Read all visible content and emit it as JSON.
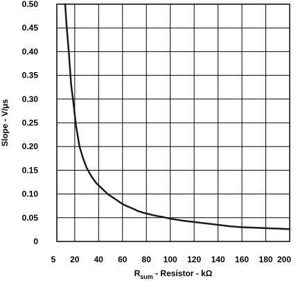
{
  "chart_data": {
    "type": "line",
    "xlabel": {
      "main": "R",
      "subscript": "sum",
      "rest": " - Resistor - kΩ"
    },
    "ylabel": "Slope - V/µs",
    "xlim": [
      5,
      200
    ],
    "ylim": [
      0,
      0.5
    ],
    "x_ticks": [
      5,
      20,
      40,
      60,
      80,
      100,
      120,
      140,
      160,
      180,
      200
    ],
    "x_tick_labels": [
      "5",
      "20",
      "40",
      "60",
      "80",
      "100",
      "120",
      "140",
      "160",
      "180",
      "200"
    ],
    "y_ticks": [
      0,
      0.05,
      0.1,
      0.15,
      0.2,
      0.25,
      0.3,
      0.35,
      0.4,
      0.45,
      0.5
    ],
    "y_tick_labels": [
      "0",
      "0.05",
      "0.10",
      "0.15",
      "0.20",
      "0.25",
      "0.30",
      "0.35",
      "0.40",
      "0.45",
      "0.50"
    ],
    "grid": true,
    "line_color": "#1a1a1a",
    "series": [
      {
        "x": [
          12,
          13,
          15,
          17,
          19,
          21,
          24,
          27,
          30,
          34,
          38,
          43,
          48,
          53,
          58,
          63,
          68,
          73,
          78,
          83,
          88,
          93,
          100,
          110,
          120,
          130,
          140,
          150,
          160,
          170,
          180,
          190,
          200
        ],
        "y": [
          0.5,
          0.46,
          0.4,
          0.33,
          0.29,
          0.245,
          0.2,
          0.175,
          0.155,
          0.137,
          0.123,
          0.111,
          0.099,
          0.091,
          0.082,
          0.075,
          0.07,
          0.064,
          0.06,
          0.057,
          0.054,
          0.052,
          0.048,
          0.044,
          0.041,
          0.038,
          0.035,
          0.032,
          0.03,
          0.029,
          0.028,
          0.027,
          0.026
        ]
      }
    ]
  }
}
